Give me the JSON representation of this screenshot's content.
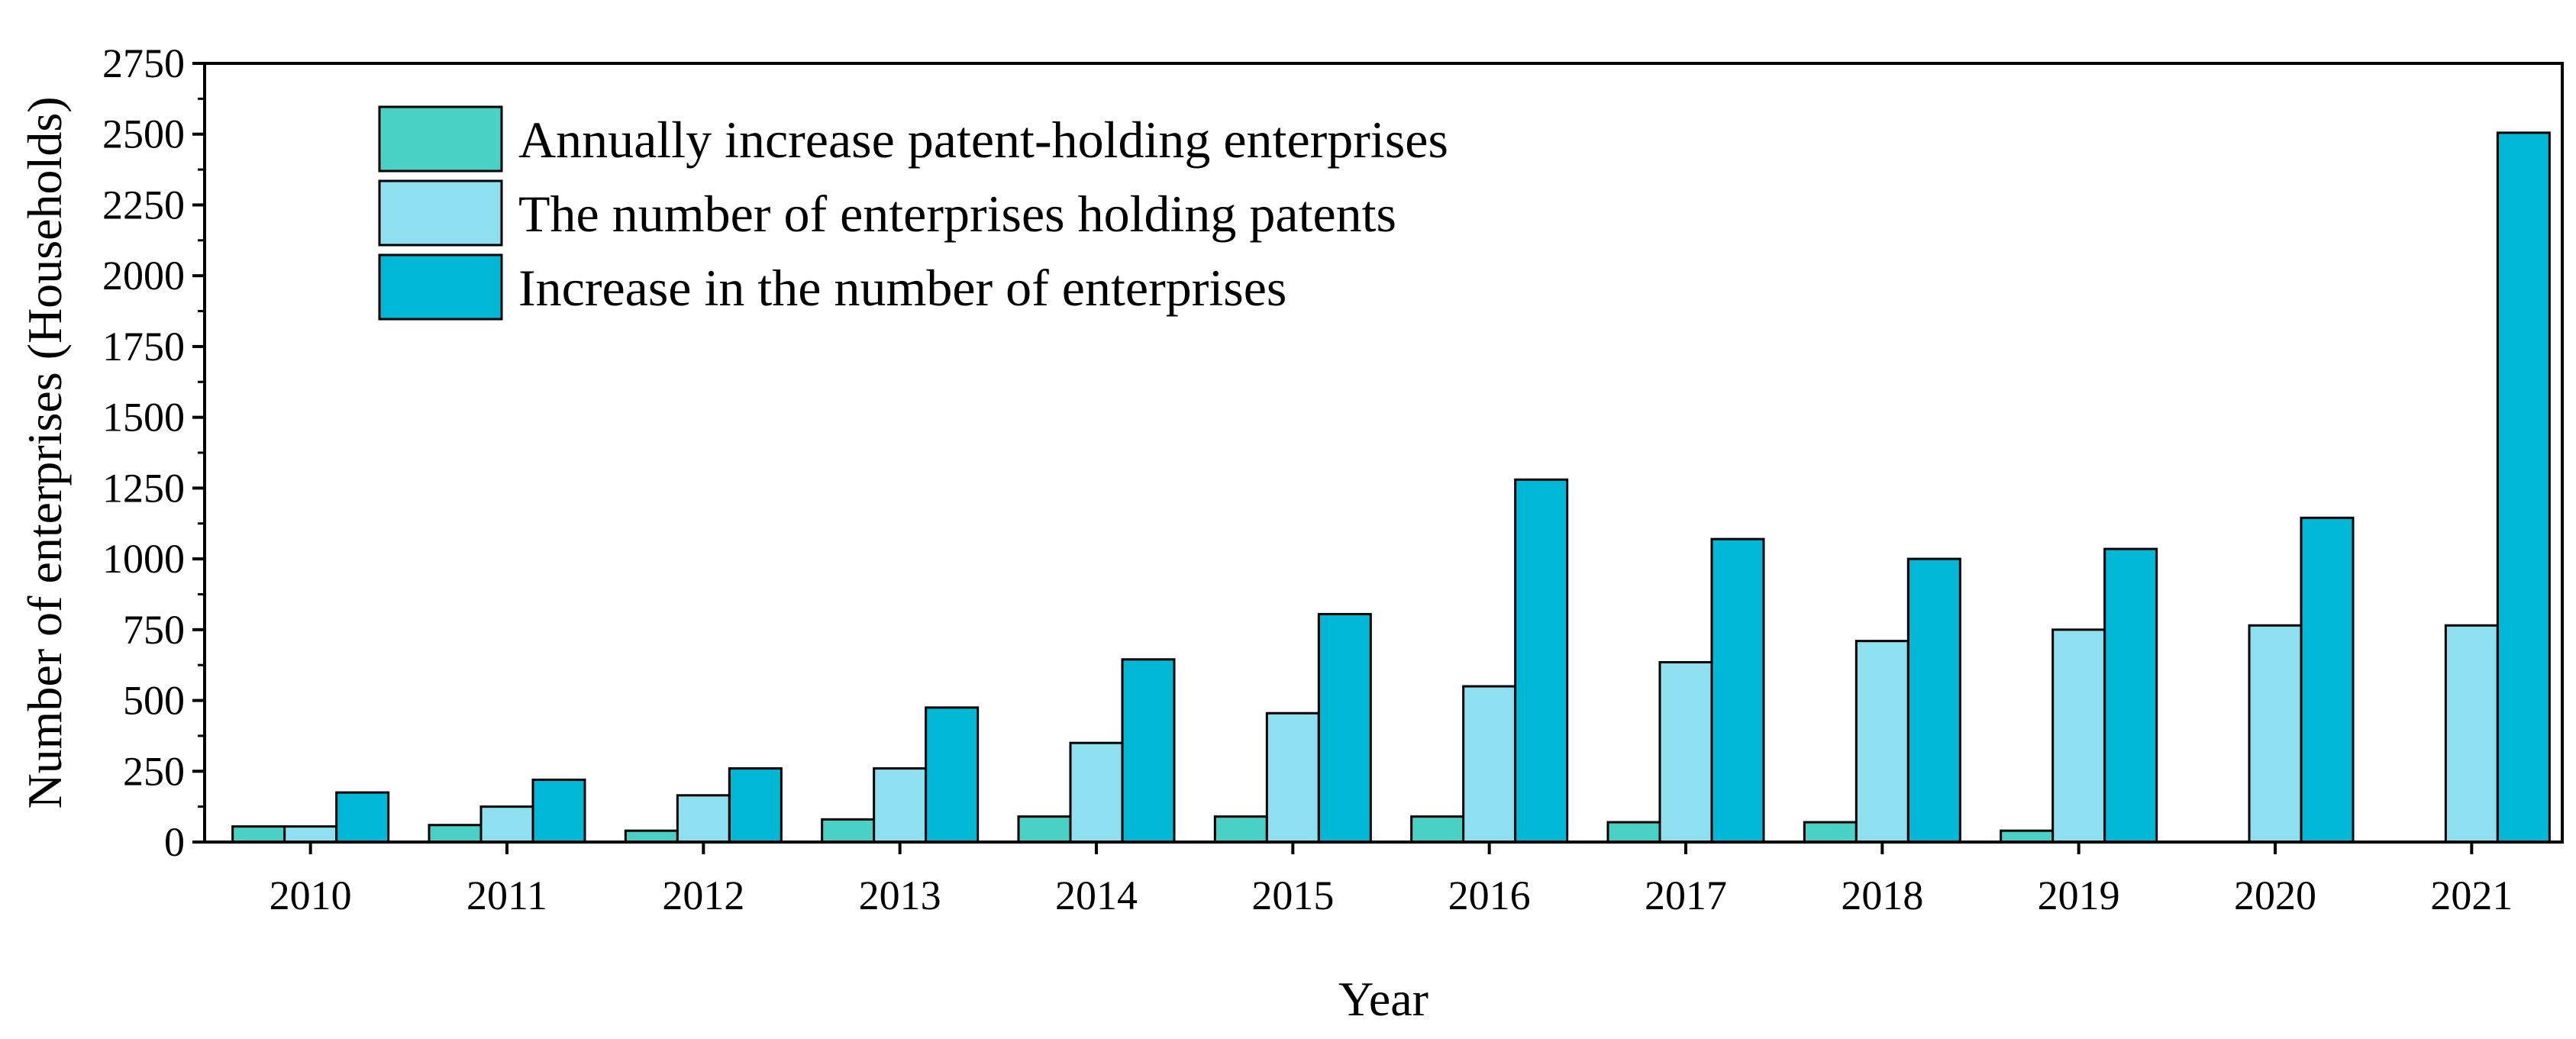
{
  "chart_data": {
    "type": "bar",
    "title": "",
    "xlabel": "Year",
    "ylabel": "Number of enterprises (Households)",
    "ylim": [
      0,
      2750
    ],
    "yticks": [
      0,
      250,
      500,
      750,
      1000,
      1250,
      1500,
      1750,
      2000,
      2250,
      2500,
      2750
    ],
    "grid": false,
    "legend_position": "top-left",
    "categories": [
      "2010",
      "2011",
      "2012",
      "2013",
      "2014",
      "2015",
      "2016",
      "2017",
      "2018",
      "2019",
      "2020",
      "2021"
    ],
    "series": [
      {
        "name": "Annually increase patent-holding enterprises",
        "color": "#48D1C4",
        "values": [
          55,
          60,
          40,
          80,
          90,
          90,
          90,
          70,
          70,
          40,
          0,
          0
        ]
      },
      {
        "name": "The number of enterprises holding patents",
        "color": "#8EE0F0",
        "values": [
          55,
          125,
          165,
          260,
          350,
          455,
          550,
          635,
          710,
          750,
          765,
          765
        ]
      },
      {
        "name": "Increase in the number of enterprises",
        "color": "#00B8D6",
        "values": [
          175,
          220,
          260,
          475,
          645,
          805,
          1280,
          1070,
          1000,
          1035,
          1145,
          2505
        ]
      }
    ]
  }
}
